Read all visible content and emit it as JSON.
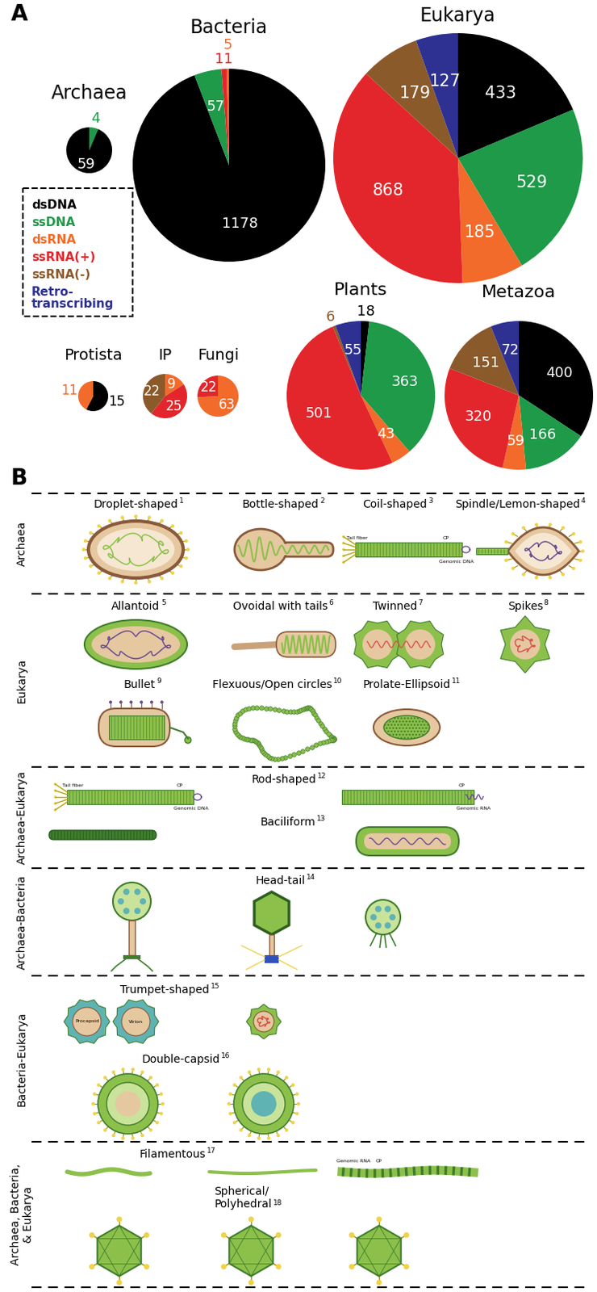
{
  "panel_labels": [
    "A",
    "B"
  ],
  "legend": [
    {
      "name": "dsDNA",
      "color": "#000000"
    },
    {
      "name": "ssDNA",
      "color": "#1e9a48"
    },
    {
      "name": "dsRNA",
      "color": "#f26b2a"
    },
    {
      "name": "ssRNA(+)",
      "color": "#e3262b"
    },
    {
      "name": "ssRNA(-)",
      "color": "#8b5a2b"
    },
    {
      "name": "Retro-\ntranscribing",
      "color": "#2e3192"
    }
  ],
  "chart_data": [
    {
      "type": "pie",
      "title": "Archaea",
      "categories": [
        "ssDNA",
        "dsDNA"
      ],
      "values": [
        4,
        59
      ],
      "data_labels": true
    },
    {
      "type": "pie",
      "title": "Bacteria",
      "categories": [
        "dsDNA",
        "ssDNA",
        "ssRNA(+)",
        "dsRNA"
      ],
      "values": [
        1178,
        57,
        11,
        5
      ],
      "data_labels": true
    },
    {
      "type": "pie",
      "title": "Eukarya",
      "categories": [
        "dsDNA",
        "ssDNA",
        "dsRNA",
        "ssRNA(+)",
        "ssRNA(-)",
        "Retro-\ntranscribing"
      ],
      "values": [
        433,
        529,
        185,
        868,
        179,
        127
      ],
      "data_labels": true
    },
    {
      "type": "pie",
      "title": "Protista",
      "categories": [
        "dsDNA",
        "dsRNA"
      ],
      "values": [
        15,
        11
      ],
      "data_labels": true
    },
    {
      "type": "pie",
      "title": "IP",
      "categories": [
        "dsRNA",
        "ssRNA(+)",
        "ssRNA(-)"
      ],
      "values": [
        9,
        25,
        22
      ],
      "data_labels": true
    },
    {
      "type": "pie",
      "title": "Fungi",
      "categories": [
        "dsRNA",
        "ssRNA(+)"
      ],
      "values": [
        63,
        22
      ],
      "data_labels": true
    },
    {
      "type": "pie",
      "title": "Plants",
      "categories": [
        "dsDNA",
        "ssDNA",
        "dsRNA",
        "ssRNA(+)",
        "ssRNA(-)",
        "Retro-\ntranscribing"
      ],
      "values": [
        18,
        363,
        43,
        501,
        6,
        55
      ],
      "data_labels": true
    },
    {
      "type": "pie",
      "title": "Metazoa",
      "categories": [
        "dsDNA",
        "ssDNA",
        "dsRNA",
        "ssRNA(+)",
        "ssRNA(-)",
        "Retro-\ntranscribing"
      ],
      "values": [
        400,
        166,
        59,
        320,
        151,
        72
      ],
      "data_labels": true
    }
  ],
  "shape_panel": {
    "rows": [
      {
        "label": "Archaea",
        "shapes": [
          {
            "name": "Droplet-shaped",
            "note": 1
          },
          {
            "name": "Bottle-shaped",
            "note": 2
          },
          {
            "name": "Coil-shaped",
            "note": 3,
            "icon_labels": [
              [
                "Tail fiber",
                "CP",
                "Genomic DNA"
              ]
            ]
          },
          {
            "name": "Spindle/Lemon-shaped",
            "note": 4
          }
        ]
      },
      {
        "label": "Eukarya",
        "shapes": [
          {
            "name": "Allantoid",
            "note": 5
          },
          {
            "name": "Ovoidal with tails",
            "note": 6
          },
          {
            "name": "Twinned",
            "note": 7
          },
          {
            "name": "Spikes",
            "note": 8
          },
          {
            "name": "Bullet",
            "note": 9
          },
          {
            "name": "Flexuous/Open circles",
            "note": 10
          },
          {
            "name": "Prolate-Ellipsoid",
            "note": 11
          }
        ]
      },
      {
        "label": "Archaea-Eukarya",
        "shapes": [
          {
            "name": "Rod-shaped",
            "note": 12,
            "icon_labels": [
              [
                "Tail fiber",
                "CP",
                "Genomic DNA"
              ],
              [
                "CP",
                "Genomic RNA"
              ]
            ]
          },
          {
            "name": "Baciliform",
            "note": 13
          }
        ]
      },
      {
        "label": "Archaea-Bacteria",
        "shapes": [
          {
            "name": "Head-tail",
            "note": 14
          }
        ]
      },
      {
        "label": "Bacteria-Eukarya",
        "shapes": [
          {
            "name": "Trumpet-shaped",
            "note": 15,
            "icon_labels": [
              [
                "Procapsid"
              ],
              [
                "Virion"
              ]
            ]
          },
          {
            "name": "Double-capsid",
            "note": 16
          }
        ]
      },
      {
        "label": "Archaea, Bacteria,\n& Eukarya",
        "shapes": [
          {
            "name": "Filamentous",
            "note": 17,
            "icon_labels": [
              [],
              [],
              [
                "Genomic RNA",
                "CP"
              ]
            ]
          },
          {
            "name": "Spherical/\nPolyhedral",
            "note": 18
          }
        ]
      }
    ]
  }
}
